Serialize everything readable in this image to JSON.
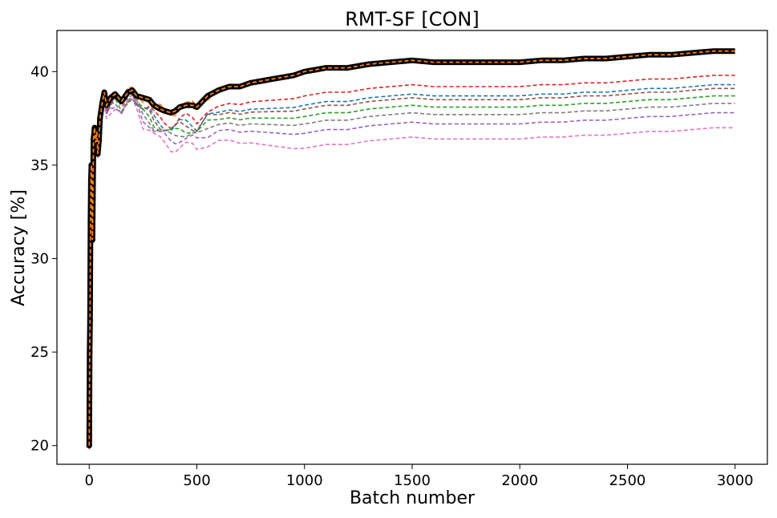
{
  "chart_data": {
    "type": "line",
    "title": "RMT-SF [CON]",
    "xlabel": "Batch number",
    "ylabel": "Accuracy [%]",
    "xlim": [
      -150,
      3150
    ],
    "ylim": [
      19.0,
      42.2
    ],
    "x_ticks": [
      0,
      500,
      1000,
      1500,
      2000,
      2500,
      3000
    ],
    "x_tick_labels": [
      "0",
      "500",
      "1000",
      "1500",
      "2000",
      "2500",
      "3000"
    ],
    "y_ticks": [
      20,
      25,
      30,
      35,
      40
    ],
    "y_tick_labels": [
      "20",
      "25",
      "30",
      "35",
      "40"
    ],
    "grid": false,
    "legend": "none",
    "main_series": {
      "style": "black markers",
      "color": "#000000",
      "x": [
        0,
        2,
        4,
        6,
        8,
        10,
        12,
        15,
        20,
        25,
        30,
        35,
        40,
        45,
        50,
        60,
        70,
        80,
        100,
        120,
        150,
        180,
        200,
        220,
        250,
        280,
        300,
        330,
        350,
        380,
        400,
        420,
        450,
        480,
        500,
        550,
        600,
        650,
        700,
        750,
        800,
        850,
        900,
        950,
        1000,
        1050,
        1100,
        1200,
        1300,
        1400,
        1500,
        1600,
        1700,
        1800,
        1900,
        2000,
        2100,
        2200,
        2300,
        2400,
        2500,
        2600,
        2700,
        2800,
        2900,
        3000
      ],
      "y": [
        20.0,
        25.0,
        26.7,
        32.0,
        34.2,
        35.0,
        33.5,
        31.0,
        36.4,
        37.0,
        36.2,
        36.8,
        35.6,
        36.3,
        37.5,
        38.3,
        38.9,
        38.2,
        38.6,
        38.8,
        38.4,
        38.9,
        39.0,
        38.7,
        38.6,
        38.5,
        38.2,
        38.0,
        37.9,
        37.8,
        37.9,
        38.1,
        38.2,
        38.2,
        38.1,
        38.7,
        39.0,
        39.2,
        39.2,
        39.4,
        39.5,
        39.6,
        39.7,
        39.8,
        40.0,
        40.1,
        40.2,
        40.2,
        40.4,
        40.5,
        40.6,
        40.5,
        40.5,
        40.5,
        40.5,
        40.5,
        40.6,
        40.6,
        40.7,
        40.7,
        40.8,
        40.9,
        40.9,
        41.0,
        41.1,
        41.1
      ]
    },
    "series": [
      {
        "style": "dashed",
        "color": "#ff7f0e",
        "offset": 0.0
      },
      {
        "style": "dashed",
        "color": "#d62728",
        "offset": -1.3
      },
      {
        "style": "dashed",
        "color": "#1f77b4",
        "offset": -1.8
      },
      {
        "style": "dashed",
        "color": "#8c564b",
        "offset": -2.0
      },
      {
        "style": "dashed",
        "color": "#2ca02c",
        "offset": -2.4
      },
      {
        "style": "dashed",
        "color": "#7f7f7f",
        "offset": -2.8
      },
      {
        "style": "dashed",
        "color": "#9467bd",
        "offset": -3.3
      },
      {
        "style": "dashed",
        "color": "#e377c2",
        "offset": -4.1
      }
    ]
  }
}
